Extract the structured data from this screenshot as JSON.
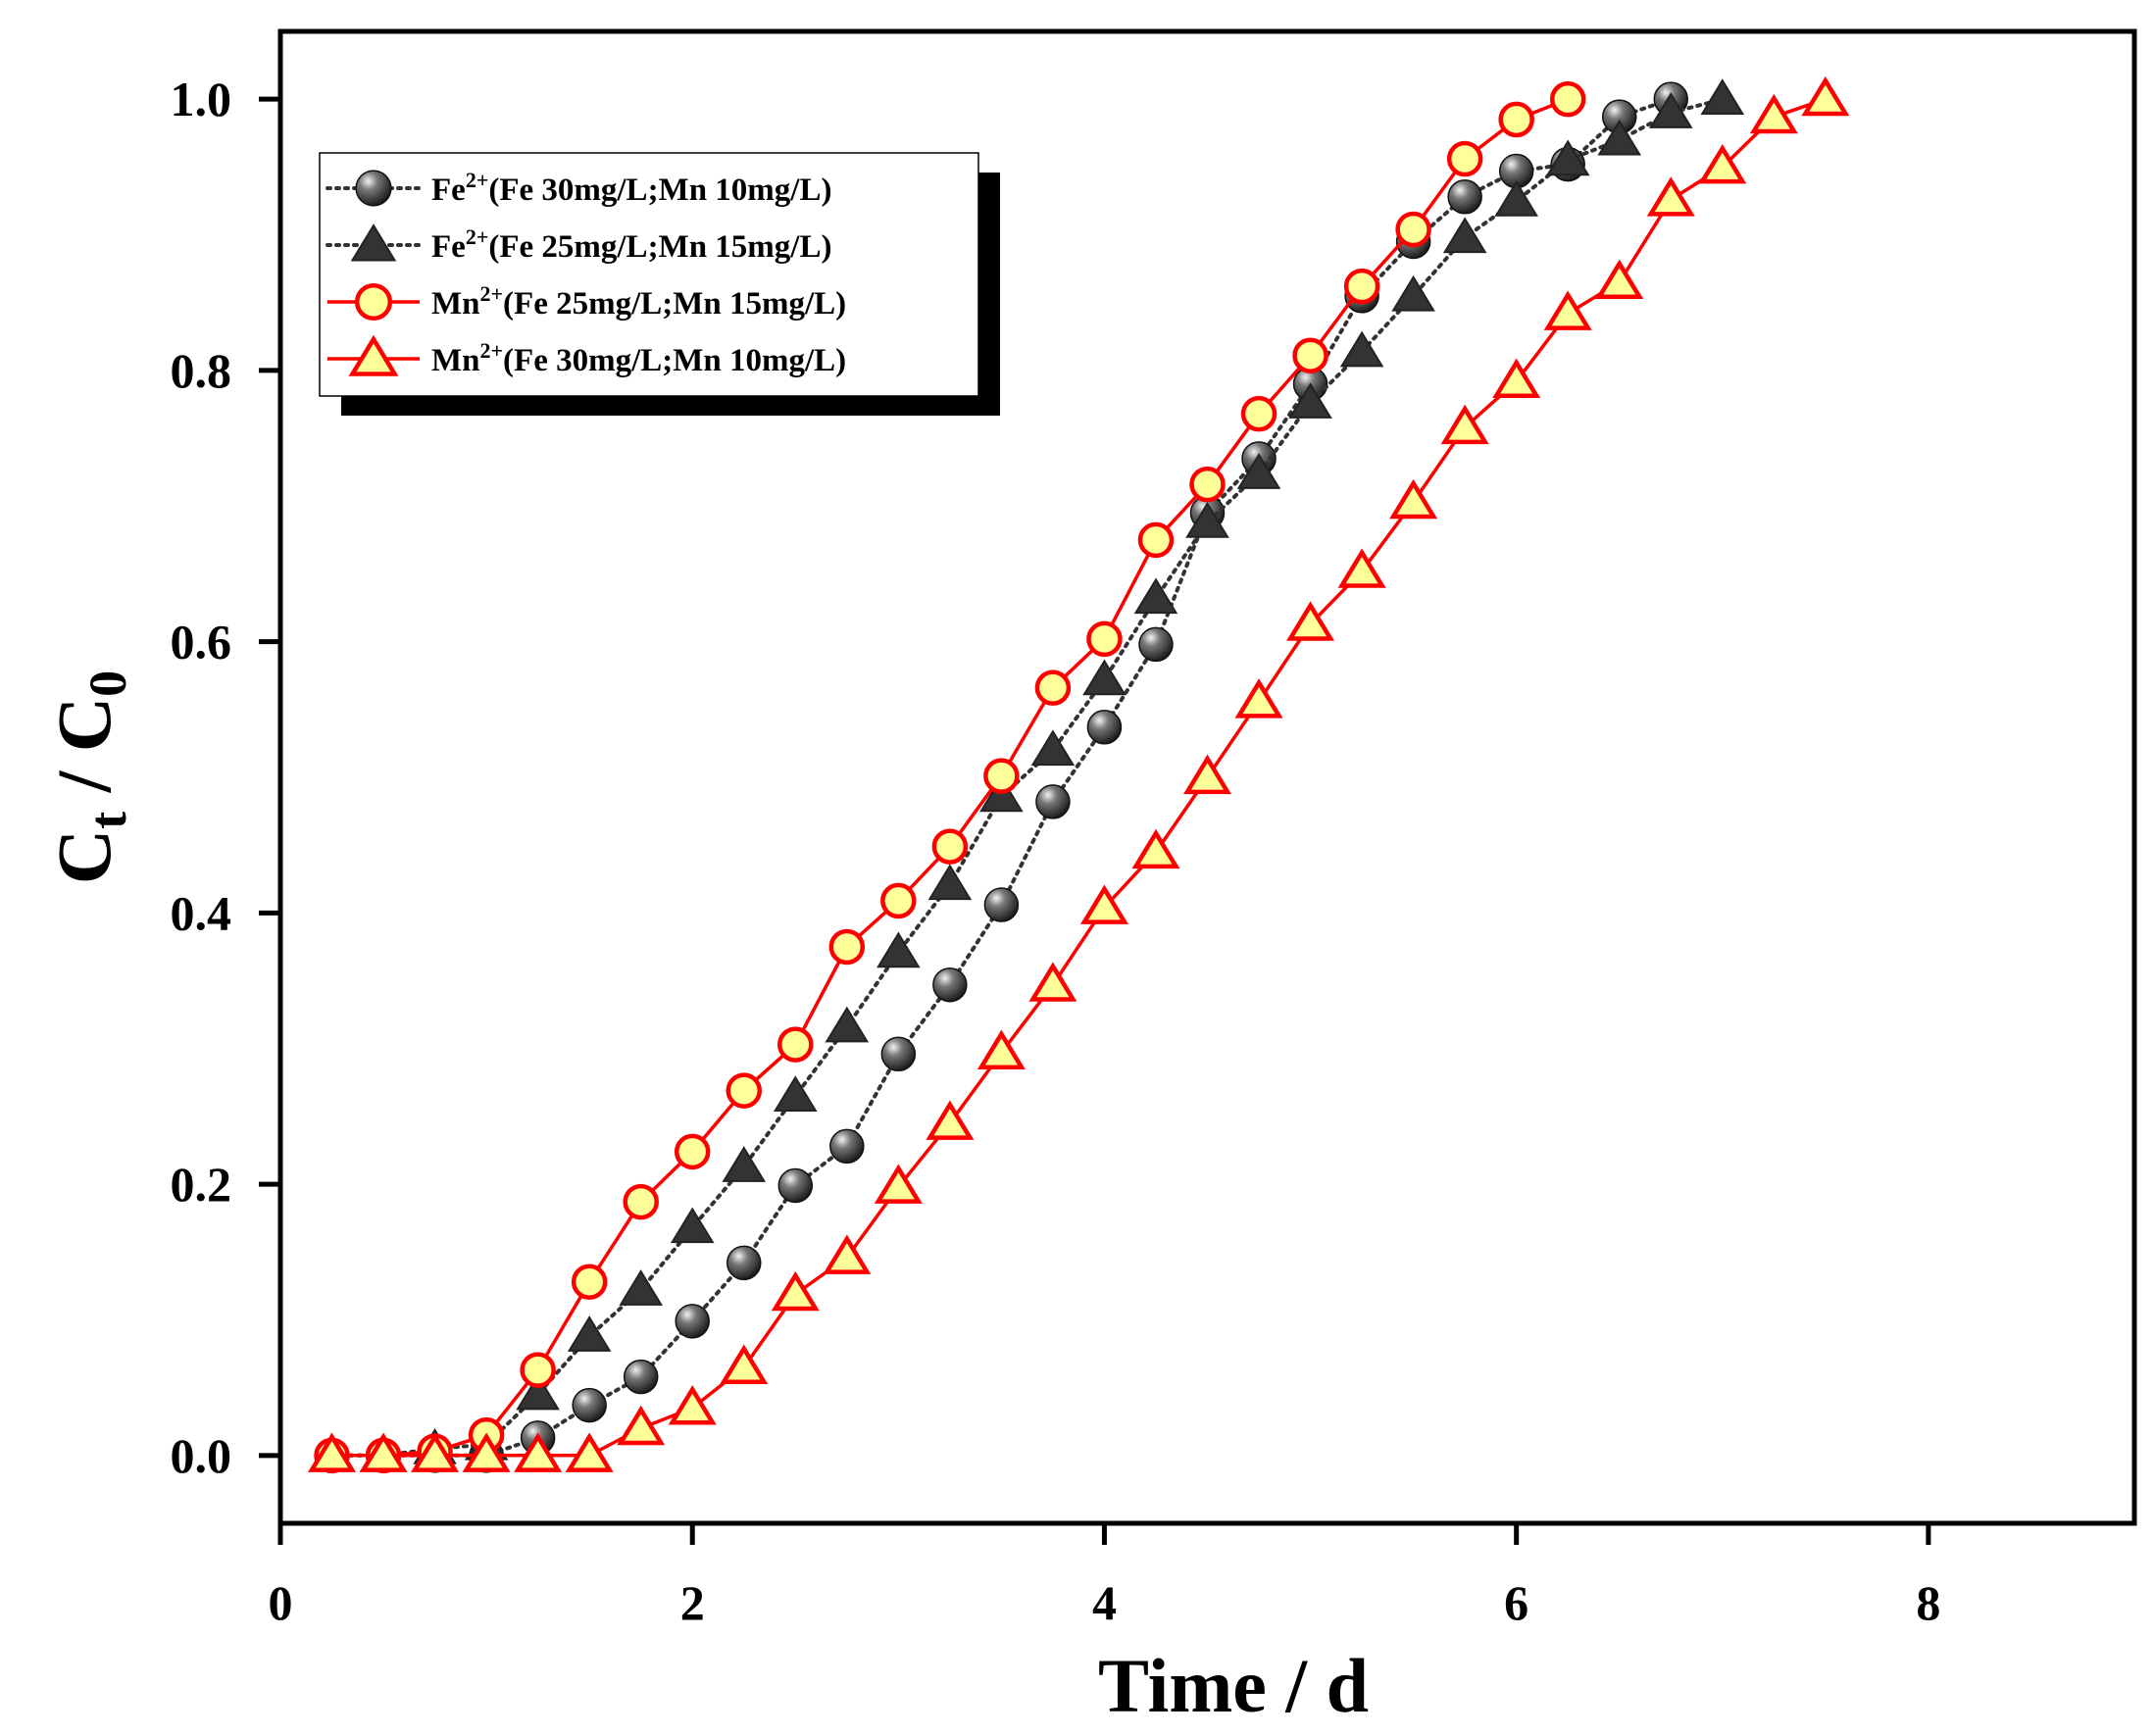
{
  "chart_data": {
    "type": "line",
    "title": "",
    "xlabel": "Time / d",
    "ylabel": {
      "main": "C",
      "sub1": "t",
      "sep": " / C",
      "sub2": "0"
    },
    "xlim": [
      0,
      9
    ],
    "ylim": [
      -0.05,
      1.05
    ],
    "xticks": [
      0,
      2,
      4,
      6,
      8
    ],
    "xtick_labels": [
      "0",
      "2",
      "4",
      "6",
      "8"
    ],
    "yticks": [
      0.0,
      0.2,
      0.4,
      0.6,
      0.8,
      1.0
    ],
    "ytick_labels": [
      "0.0",
      "0.2",
      "0.4",
      "0.6",
      "0.8",
      "1.0"
    ],
    "grid": false,
    "legend_position": "top-left",
    "series": [
      {
        "name": "Fe2+(Fe 30mg/L;Mn 10mg/L)",
        "label": {
          "ion": "Fe",
          "charge": "2+",
          "cond": "(Fe 30mg/L;Mn 10mg/L)"
        },
        "marker": "sphere",
        "line_style": "dotted",
        "line_color": "#333333",
        "marker_fill": "#3a3a3a",
        "marker_edge": "#000000",
        "x": [
          0.25,
          0.5,
          0.75,
          1.0,
          1.25,
          1.5,
          1.75,
          2.0,
          2.25,
          2.5,
          2.75,
          3.0,
          3.25,
          3.5,
          3.75,
          4.0,
          4.25,
          4.5,
          4.75,
          5.0,
          5.25,
          5.5,
          5.75,
          6.0,
          6.25,
          6.5,
          6.75
        ],
        "y": [
          0.0,
          0.0,
          0.0,
          0.0,
          0.013,
          0.037,
          0.058,
          0.099,
          0.142,
          0.199,
          0.228,
          0.296,
          0.347,
          0.406,
          0.482,
          0.537,
          0.598,
          0.695,
          0.735,
          0.79,
          0.855,
          0.895,
          0.928,
          0.947,
          0.952,
          0.987,
          1.0
        ]
      },
      {
        "name": "Fe2+(Fe 25mg/L;Mn 15mg/L)",
        "label": {
          "ion": "Fe",
          "charge": "2+",
          "cond": "(Fe 25mg/L;Mn 15mg/L)"
        },
        "marker": "triangle-filled",
        "line_style": "dotted",
        "line_color": "#333333",
        "marker_fill": "#333333",
        "marker_edge": "#222222",
        "x": [
          0.25,
          0.5,
          0.75,
          1.0,
          1.25,
          1.5,
          1.75,
          2.0,
          2.25,
          2.5,
          2.75,
          3.0,
          3.25,
          3.5,
          3.75,
          4.0,
          4.25,
          4.5,
          4.75,
          5.0,
          5.25,
          5.5,
          5.75,
          6.0,
          6.25,
          6.5,
          6.75,
          7.0
        ],
        "y": [
          0.0,
          0.0,
          0.005,
          0.008,
          0.045,
          0.088,
          0.122,
          0.168,
          0.213,
          0.265,
          0.316,
          0.371,
          0.421,
          0.486,
          0.52,
          0.572,
          0.632,
          0.688,
          0.724,
          0.776,
          0.814,
          0.855,
          0.898,
          0.925,
          0.955,
          0.97,
          0.99,
          1.0
        ]
      },
      {
        "name": "Mn2+(Fe 25mg/L;Mn 15mg/L)",
        "label": {
          "ion": "Mn",
          "charge": "2+",
          "cond": "(Fe 25mg/L;Mn 15mg/L)"
        },
        "marker": "circle-open",
        "line_style": "solid",
        "line_color": "#ff0000",
        "marker_fill": "#ffff99",
        "marker_edge": "#ff0000",
        "x": [
          0.25,
          0.5,
          0.75,
          1.0,
          1.25,
          1.5,
          1.75,
          2.0,
          2.25,
          2.5,
          2.75,
          3.0,
          3.25,
          3.5,
          3.75,
          4.0,
          4.25,
          4.5,
          4.75,
          5.0,
          5.25,
          5.5,
          5.75,
          6.0,
          6.25
        ],
        "y": [
          0.0,
          0.0,
          0.003,
          0.015,
          0.063,
          0.128,
          0.187,
          0.224,
          0.269,
          0.303,
          0.375,
          0.409,
          0.449,
          0.501,
          0.566,
          0.602,
          0.675,
          0.716,
          0.768,
          0.811,
          0.862,
          0.904,
          0.956,
          0.985,
          1.0
        ]
      },
      {
        "name": "Mn2+(Fe 30mg/L;Mn 10mg/L)",
        "label": {
          "ion": "Mn",
          "charge": "2+",
          "cond": "(Fe 30mg/L;Mn 10mg/L)"
        },
        "marker": "triangle-open",
        "line_style": "solid",
        "line_color": "#ff0000",
        "marker_fill": "#ffff99",
        "marker_edge": "#ff0000",
        "x": [
          0.25,
          0.5,
          0.75,
          1.0,
          1.25,
          1.5,
          1.75,
          2.0,
          2.25,
          2.5,
          2.75,
          3.0,
          3.25,
          3.5,
          3.75,
          4.0,
          4.25,
          4.5,
          4.75,
          5.0,
          5.25,
          5.5,
          5.75,
          6.0,
          6.25,
          6.5,
          6.75,
          7.0,
          7.25,
          7.5
        ],
        "y": [
          0.0,
          0.0,
          0.0,
          0.0,
          0.0,
          0.0,
          0.02,
          0.035,
          0.065,
          0.119,
          0.146,
          0.198,
          0.245,
          0.297,
          0.347,
          0.404,
          0.445,
          0.5,
          0.556,
          0.613,
          0.652,
          0.703,
          0.758,
          0.792,
          0.842,
          0.865,
          0.926,
          0.95,
          0.987,
          1.0
        ]
      }
    ]
  }
}
